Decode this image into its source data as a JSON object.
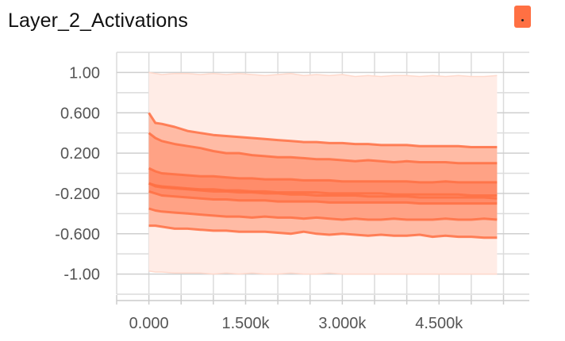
{
  "title": "Layer_2_Activations",
  "menu": {
    "icon": "menu-dot-icon",
    "color": "#ff7043"
  },
  "chart_data": {
    "type": "area",
    "title": "Layer_2_Activations",
    "xlabel": "",
    "ylabel": "",
    "xlim": [
      -500,
      5900
    ],
    "ylim": [
      -1.2,
      1.2
    ],
    "grid": true,
    "x_ticks": [
      {
        "value": 0,
        "label": "0.000"
      },
      {
        "value": 1500,
        "label": "1.500k"
      },
      {
        "value": 3000,
        "label": "3.000k"
      },
      {
        "value": 4500,
        "label": "4.500k"
      }
    ],
    "y_ticks": [
      {
        "value": 1.0,
        "label": "1.00"
      },
      {
        "value": 0.6,
        "label": "0.600"
      },
      {
        "value": 0.2,
        "label": "0.200"
      },
      {
        "value": -0.2,
        "label": "-0.200"
      },
      {
        "value": -0.6,
        "label": "-0.600"
      },
      {
        "value": -1.0,
        "label": "-1.00"
      }
    ],
    "x_minor_step": 500,
    "y_minor_step": 0.2,
    "colors": {
      "band_outer": "#ffece6",
      "band_2": "#ffbba5",
      "band_3": "#ffa285",
      "band_4": "#ff8c6a",
      "line": "#ff7043"
    },
    "x": [
      0,
      100,
      200,
      400,
      600,
      800,
      1000,
      1200,
      1400,
      1600,
      1800,
      2000,
      2200,
      2400,
      2600,
      2800,
      3000,
      3200,
      3400,
      3600,
      3800,
      4000,
      4200,
      4400,
      4600,
      4800,
      5000,
      5200,
      5400
    ],
    "series": [
      {
        "values": [
          1.0,
          0.99,
          0.98,
          0.99,
          0.99,
          0.98,
          0.99,
          0.98,
          0.99,
          0.98,
          0.97,
          0.98,
          0.99,
          0.97,
          0.98,
          0.97,
          0.98,
          0.96,
          0.97,
          0.96,
          0.97,
          0.97,
          0.96,
          0.97,
          0.96,
          0.97,
          0.96,
          0.96,
          0.97
        ]
      },
      {
        "values": [
          0.6,
          0.5,
          0.49,
          0.46,
          0.42,
          0.4,
          0.38,
          0.37,
          0.36,
          0.35,
          0.34,
          0.33,
          0.32,
          0.31,
          0.31,
          0.3,
          0.3,
          0.29,
          0.29,
          0.28,
          0.28,
          0.28,
          0.27,
          0.27,
          0.27,
          0.27,
          0.26,
          0.26,
          0.26
        ]
      },
      {
        "values": [
          0.4,
          0.35,
          0.32,
          0.29,
          0.27,
          0.25,
          0.22,
          0.2,
          0.2,
          0.18,
          0.17,
          0.16,
          0.16,
          0.15,
          0.14,
          0.14,
          0.13,
          0.12,
          0.13,
          0.12,
          0.11,
          0.12,
          0.11,
          0.11,
          0.11,
          0.1,
          0.1,
          0.1,
          0.1
        ]
      },
      {
        "values": [
          0.05,
          0.02,
          0.0,
          -0.01,
          -0.02,
          -0.03,
          -0.03,
          -0.04,
          -0.05,
          -0.05,
          -0.06,
          -0.06,
          -0.06,
          -0.07,
          -0.07,
          -0.07,
          -0.08,
          -0.08,
          -0.08,
          -0.08,
          -0.08,
          -0.08,
          -0.09,
          -0.09,
          -0.08,
          -0.09,
          -0.09,
          -0.09,
          -0.09
        ]
      },
      {
        "values": [
          -0.1,
          -0.12,
          -0.13,
          -0.14,
          -0.15,
          -0.16,
          -0.16,
          -0.17,
          -0.17,
          -0.18,
          -0.18,
          -0.19,
          -0.19,
          -0.19,
          -0.19,
          -0.2,
          -0.2,
          -0.2,
          -0.2,
          -0.2,
          -0.21,
          -0.21,
          -0.21,
          -0.21,
          -0.21,
          -0.21,
          -0.22,
          -0.22,
          -0.22
        ]
      },
      {
        "values": [
          -0.1,
          -0.13,
          -0.14,
          -0.15,
          -0.16,
          -0.17,
          -0.18,
          -0.18,
          -0.19,
          -0.19,
          -0.2,
          -0.2,
          -0.21,
          -0.21,
          -0.22,
          -0.22,
          -0.22,
          -0.22,
          -0.23,
          -0.23,
          -0.23,
          -0.23,
          -0.24,
          -0.24,
          -0.24,
          -0.24,
          -0.24,
          -0.24,
          -0.25
        ]
      },
      {
        "values": [
          -0.18,
          -0.2,
          -0.22,
          -0.23,
          -0.24,
          -0.25,
          -0.26,
          -0.26,
          -0.27,
          -0.27,
          -0.27,
          -0.28,
          -0.28,
          -0.28,
          -0.28,
          -0.29,
          -0.29,
          -0.29,
          -0.29,
          -0.29,
          -0.29,
          -0.29,
          -0.3,
          -0.3,
          -0.3,
          -0.3,
          -0.3,
          -0.3,
          -0.3
        ]
      },
      {
        "values": [
          -0.35,
          -0.37,
          -0.38,
          -0.39,
          -0.4,
          -0.41,
          -0.42,
          -0.43,
          -0.43,
          -0.44,
          -0.43,
          -0.44,
          -0.44,
          -0.45,
          -0.44,
          -0.45,
          -0.46,
          -0.45,
          -0.46,
          -0.46,
          -0.45,
          -0.46,
          -0.46,
          -0.46,
          -0.45,
          -0.46,
          -0.46,
          -0.45,
          -0.46
        ]
      },
      {
        "values": [
          -0.52,
          -0.52,
          -0.53,
          -0.55,
          -0.55,
          -0.56,
          -0.57,
          -0.57,
          -0.58,
          -0.58,
          -0.58,
          -0.59,
          -0.6,
          -0.58,
          -0.6,
          -0.61,
          -0.6,
          -0.61,
          -0.62,
          -0.61,
          -0.62,
          -0.62,
          -0.61,
          -0.63,
          -0.62,
          -0.63,
          -0.63,
          -0.64,
          -0.64
        ]
      },
      {
        "values": [
          -0.97,
          -0.98,
          -0.98,
          -0.99,
          -0.99,
          -0.99,
          -1.0,
          -0.99,
          -1.0,
          -0.99,
          -1.0,
          -1.0,
          -0.99,
          -1.0,
          -1.0,
          -0.99,
          -1.0,
          -1.0,
          -1.0,
          -1.0,
          -1.0,
          -1.0,
          -1.0,
          -1.0,
          -1.0,
          -1.0,
          -1.0,
          -1.0,
          -1.0
        ]
      }
    ]
  }
}
